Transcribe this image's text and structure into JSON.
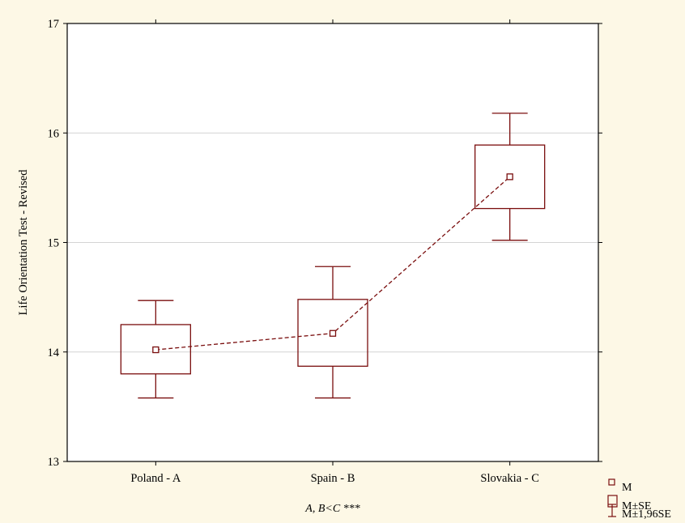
{
  "colors": {
    "background": "#fdf8e6",
    "plot_background": "#ffffff",
    "series": "#7a0e0e",
    "grid": "#d4d4d4",
    "frame": "#000000"
  },
  "chart_data": {
    "type": "box",
    "title": "",
    "xlabel": "A, B<C ***",
    "ylabel": "Life Orientation Test - Revised",
    "ylim": [
      13,
      17
    ],
    "yticks": [
      "13",
      "14",
      "15",
      "16",
      "17"
    ],
    "grid": true,
    "legend_position": "bottom-right",
    "legend": [
      "M",
      "M±SE",
      "M±1,96SE"
    ],
    "categories": [
      "Poland - A",
      "Spain - B",
      "Slovakia - C"
    ],
    "mean": [
      14.02,
      14.17,
      15.6
    ],
    "se_low": [
      13.8,
      13.87,
      15.31
    ],
    "se_high": [
      14.25,
      14.48,
      15.89
    ],
    "ci_low": [
      13.58,
      13.58,
      15.02
    ],
    "ci_high": [
      14.47,
      14.78,
      16.18
    ],
    "mean_line": "dashed"
  }
}
